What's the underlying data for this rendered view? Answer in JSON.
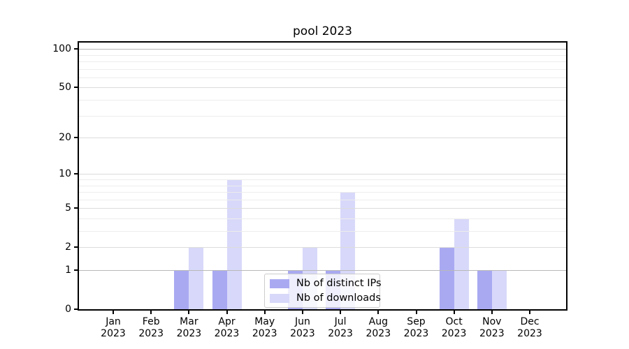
{
  "chart_data": {
    "type": "bar",
    "title": "pool 2023",
    "categories": [
      "Jan",
      "Feb",
      "Mar",
      "Apr",
      "May",
      "Jun",
      "Jul",
      "Aug",
      "Sep",
      "Oct",
      "Nov",
      "Dec"
    ],
    "category_year": "2023",
    "series": [
      {
        "name": "Nb of distinct IPs",
        "color": "#a9a9f2",
        "values": [
          0,
          0,
          1,
          1,
          0,
          1,
          1,
          0,
          0,
          2,
          1,
          0
        ]
      },
      {
        "name": "Nb of downloads",
        "color": "#d8d8fa",
        "values": [
          0,
          0,
          2,
          9,
          0,
          2,
          7,
          0,
          0,
          4,
          1,
          0
        ]
      }
    ],
    "yaxis": {
      "scale": "log1p",
      "tick_labels": [
        "100",
        "50",
        "20",
        "10",
        "5",
        "2",
        "1",
        "0"
      ],
      "ticks": [
        100,
        50,
        20,
        10,
        5,
        2,
        1,
        0
      ],
      "minor_ticks": [
        3,
        4,
        6,
        7,
        8,
        9,
        30,
        40,
        60,
        70,
        80,
        90
      ],
      "ylim": [
        0,
        112
      ]
    },
    "grid": true,
    "legend_position": "lower center",
    "colors": {
      "major_gridline": "#dcdcdc",
      "emphasized_gridline": "#b8b8b8",
      "minor_gridline": "#ededed",
      "axis": "#000000"
    }
  }
}
